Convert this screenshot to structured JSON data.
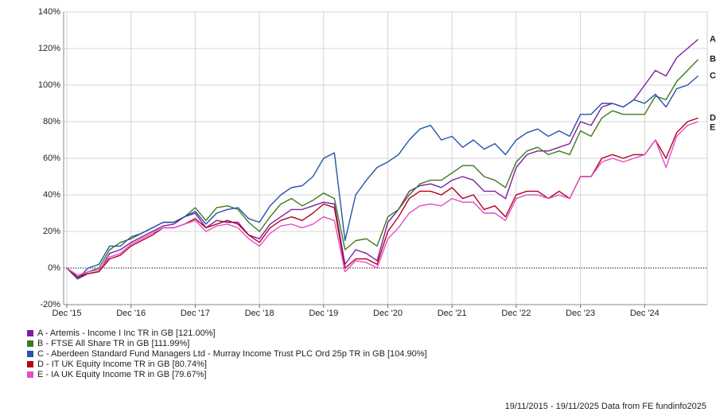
{
  "chart_data": {
    "type": "line",
    "x": [
      "Dec '15",
      null,
      null,
      null,
      null,
      null,
      "Dec '16",
      null,
      null,
      null,
      null,
      null,
      "Dec '17",
      null,
      null,
      null,
      null,
      null,
      "Dec '18",
      null,
      null,
      null,
      null,
      null,
      "Dec '19",
      null,
      null,
      null,
      null,
      null,
      "Dec '20",
      null,
      null,
      null,
      null,
      null,
      "Dec '21",
      null,
      null,
      null,
      null,
      null,
      "Dec '22",
      null,
      null,
      null,
      null,
      null,
      "Dec '23",
      null,
      null,
      null,
      null,
      null,
      "Dec '24",
      null,
      null,
      null,
      null,
      null
    ],
    "ylim": [
      -20,
      140
    ],
    "yticks": [
      {
        "value": -20,
        "label": "-20%"
      },
      {
        "value": 0,
        "label": "0%"
      },
      {
        "value": 20,
        "label": "20%"
      },
      {
        "value": 40,
        "label": "40%"
      },
      {
        "value": 60,
        "label": "60%"
      },
      {
        "value": 80,
        "label": "80%"
      },
      {
        "value": 100,
        "label": "100%"
      },
      {
        "value": 120,
        "label": "120%"
      },
      {
        "value": 140,
        "label": "140%"
      }
    ],
    "grid": true,
    "series": [
      {
        "name": "A - Artemis - Income I Inc TR in GB [121.00%]",
        "end_label": "A",
        "color": "#7b1fa2",
        "values": [
          0,
          -6,
          -3,
          -2,
          8,
          10,
          14,
          17,
          20,
          23,
          24,
          28,
          30,
          22,
          26,
          25,
          25,
          18,
          16,
          24,
          28,
          32,
          32,
          34,
          36,
          35,
          2,
          10,
          8,
          4,
          25,
          32,
          42,
          45,
          46,
          44,
          48,
          50,
          48,
          42,
          42,
          38,
          55,
          62,
          64,
          64,
          66,
          68,
          80,
          78,
          88,
          90,
          88,
          92,
          100,
          108,
          105,
          115,
          120,
          125
        ]
      },
      {
        "name": "B - FTSE All Share TR in GB [111.99%]",
        "end_label": "B",
        "color": "#3d7a1e",
        "values": [
          0,
          -5,
          -2,
          0,
          10,
          14,
          16,
          19,
          22,
          25,
          25,
          28,
          33,
          26,
          33,
          34,
          32,
          25,
          20,
          28,
          35,
          38,
          34,
          37,
          41,
          38,
          10,
          15,
          16,
          12,
          28,
          32,
          40,
          46,
          48,
          48,
          52,
          56,
          56,
          50,
          48,
          44,
          58,
          64,
          66,
          62,
          64,
          62,
          75,
          72,
          82,
          86,
          84,
          84,
          84,
          94,
          92,
          102,
          108,
          114
        ]
      },
      {
        "name": "C - Aberdeen Standard Fund Managers Ltd - Murray Income Trust PLC Ord 25p TR in GB [104.90%]",
        "end_label": "C",
        "color": "#2554a8",
        "values": [
          0,
          -6,
          0,
          2,
          12,
          12,
          17,
          19,
          22,
          25,
          25,
          28,
          31,
          24,
          30,
          32,
          33,
          27,
          25,
          34,
          40,
          44,
          45,
          50,
          60,
          63,
          15,
          40,
          48,
          55,
          58,
          62,
          70,
          76,
          78,
          70,
          72,
          66,
          70,
          65,
          68,
          62,
          70,
          74,
          76,
          72,
          75,
          72,
          84,
          84,
          90,
          90,
          88,
          92,
          90,
          95,
          88,
          98,
          100,
          105
        ]
      },
      {
        "name": "D - IT UK Equity Income TR in GB [80.74%]",
        "end_label": "D",
        "color": "#b3001b",
        "values": [
          0,
          -5,
          -3,
          -2,
          5,
          7,
          12,
          15,
          18,
          22,
          22,
          24,
          27,
          22,
          24,
          26,
          24,
          18,
          14,
          22,
          26,
          28,
          26,
          30,
          35,
          33,
          0,
          5,
          5,
          2,
          20,
          28,
          38,
          42,
          42,
          40,
          44,
          38,
          40,
          32,
          34,
          28,
          40,
          42,
          42,
          38,
          42,
          38,
          50,
          50,
          60,
          62,
          60,
          62,
          62,
          70,
          60,
          74,
          80,
          82
        ]
      },
      {
        "name": "E - IA UK Equity Income TR in GB [79.67%]",
        "end_label": "E",
        "color": "#e24fc8",
        "values": [
          0,
          -4,
          -2,
          -1,
          6,
          8,
          13,
          16,
          19,
          22,
          22,
          24,
          26,
          20,
          23,
          24,
          22,
          16,
          12,
          19,
          23,
          24,
          22,
          24,
          28,
          26,
          -2,
          4,
          3,
          0,
          16,
          22,
          30,
          34,
          35,
          34,
          38,
          36,
          36,
          30,
          30,
          26,
          38,
          40,
          40,
          38,
          40,
          38,
          50,
          50,
          58,
          60,
          58,
          60,
          62,
          70,
          55,
          72,
          78,
          80
        ]
      }
    ],
    "source": "19/11/2015 - 19/11/2025 Data from FE fundinfo2025"
  }
}
